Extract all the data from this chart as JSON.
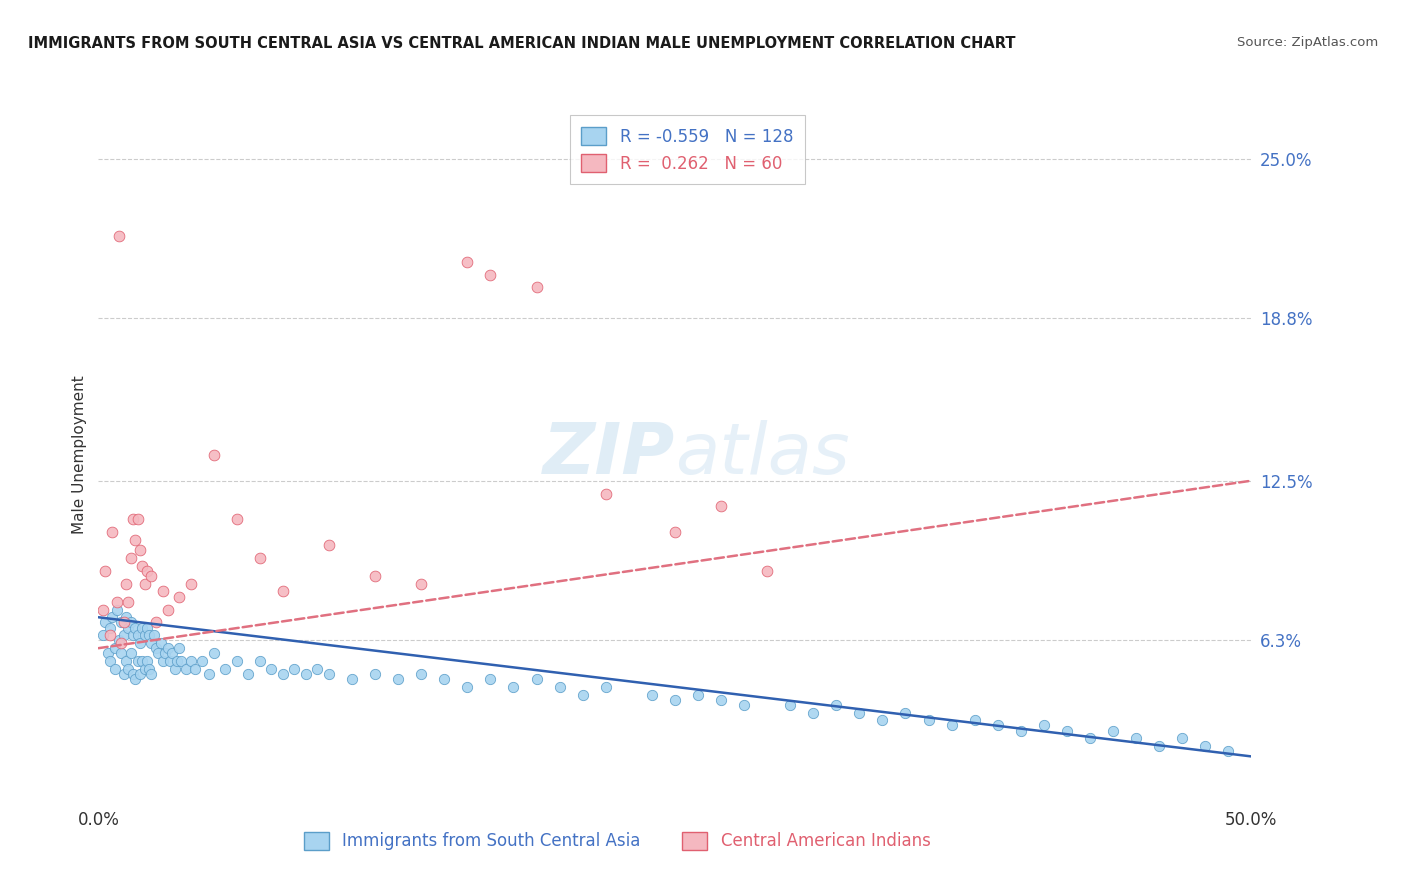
{
  "title": "IMMIGRANTS FROM SOUTH CENTRAL ASIA VS CENTRAL AMERICAN INDIAN MALE UNEMPLOYMENT CORRELATION CHART",
  "source": "Source: ZipAtlas.com",
  "ylabel": "Male Unemployment",
  "y_ticks": [
    6.3,
    12.5,
    18.8,
    25.0
  ],
  "x_range": [
    0.0,
    50.0
  ],
  "y_range": [
    0.0,
    27.0
  ],
  "blue_label": "Immigrants from South Central Asia",
  "pink_label": "Central American Indians",
  "blue_r": "-0.559",
  "blue_n": "128",
  "pink_r": "0.262",
  "pink_n": "60",
  "blue_color": "#A8D4F0",
  "pink_color": "#F5B8C0",
  "blue_edge": "#5B9EC9",
  "pink_edge": "#E06070",
  "trend_blue": "#3060B0",
  "trend_pink": "#E07080",
  "background": "#FFFFFF",
  "blue_scatter_x": [
    0.2,
    0.3,
    0.4,
    0.5,
    0.5,
    0.6,
    0.7,
    0.7,
    0.8,
    0.9,
    1.0,
    1.0,
    1.1,
    1.1,
    1.2,
    1.2,
    1.3,
    1.3,
    1.4,
    1.4,
    1.5,
    1.5,
    1.6,
    1.6,
    1.7,
    1.7,
    1.8,
    1.8,
    1.9,
    1.9,
    2.0,
    2.0,
    2.1,
    2.1,
    2.2,
    2.2,
    2.3,
    2.3,
    2.4,
    2.5,
    2.6,
    2.7,
    2.8,
    2.9,
    3.0,
    3.1,
    3.2,
    3.3,
    3.4,
    3.5,
    3.6,
    3.8,
    4.0,
    4.2,
    4.5,
    4.8,
    5.0,
    5.5,
    6.0,
    6.5,
    7.0,
    7.5,
    8.0,
    8.5,
    9.0,
    9.5,
    10.0,
    11.0,
    12.0,
    13.0,
    14.0,
    15.0,
    16.0,
    17.0,
    18.0,
    19.0,
    20.0,
    21.0,
    22.0,
    24.0,
    25.0,
    26.0,
    27.0,
    28.0,
    30.0,
    31.0,
    32.0,
    33.0,
    34.0,
    35.0,
    36.0,
    37.0,
    38.0,
    39.0,
    40.0,
    41.0,
    42.0,
    43.0,
    44.0,
    45.0,
    46.0,
    47.0,
    48.0,
    49.0
  ],
  "blue_scatter_y": [
    6.5,
    7.0,
    5.8,
    6.8,
    5.5,
    7.2,
    6.0,
    5.2,
    7.5,
    6.3,
    7.0,
    5.8,
    6.5,
    5.0,
    7.2,
    5.5,
    6.8,
    5.2,
    7.0,
    5.8,
    6.5,
    5.0,
    6.8,
    4.8,
    6.5,
    5.5,
    6.2,
    5.0,
    6.8,
    5.5,
    6.5,
    5.2,
    6.8,
    5.5,
    6.5,
    5.2,
    6.2,
    5.0,
    6.5,
    6.0,
    5.8,
    6.2,
    5.5,
    5.8,
    6.0,
    5.5,
    5.8,
    5.2,
    5.5,
    6.0,
    5.5,
    5.2,
    5.5,
    5.2,
    5.5,
    5.0,
    5.8,
    5.2,
    5.5,
    5.0,
    5.5,
    5.2,
    5.0,
    5.2,
    5.0,
    5.2,
    5.0,
    4.8,
    5.0,
    4.8,
    5.0,
    4.8,
    4.5,
    4.8,
    4.5,
    4.8,
    4.5,
    4.2,
    4.5,
    4.2,
    4.0,
    4.2,
    4.0,
    3.8,
    3.8,
    3.5,
    3.8,
    3.5,
    3.2,
    3.5,
    3.2,
    3.0,
    3.2,
    3.0,
    2.8,
    3.0,
    2.8,
    2.5,
    2.8,
    2.5,
    2.2,
    2.5,
    2.2,
    2.0
  ],
  "pink_scatter_x": [
    0.2,
    0.3,
    0.5,
    0.6,
    0.8,
    0.9,
    1.0,
    1.1,
    1.2,
    1.3,
    1.4,
    1.5,
    1.6,
    1.7,
    1.8,
    1.9,
    2.0,
    2.1,
    2.3,
    2.5,
    2.8,
    3.0,
    3.5,
    4.0,
    5.0,
    6.0,
    7.0,
    8.0,
    10.0,
    12.0,
    14.0,
    16.0,
    17.0,
    19.0,
    22.0,
    25.0,
    27.0,
    29.0
  ],
  "pink_scatter_y": [
    7.5,
    9.0,
    6.5,
    10.5,
    7.8,
    22.0,
    6.2,
    7.0,
    8.5,
    7.8,
    9.5,
    11.0,
    10.2,
    11.0,
    9.8,
    9.2,
    8.5,
    9.0,
    8.8,
    7.0,
    8.2,
    7.5,
    8.0,
    8.5,
    13.5,
    11.0,
    9.5,
    8.2,
    10.0,
    8.8,
    8.5,
    21.0,
    20.5,
    20.0,
    12.0,
    10.5,
    11.5,
    9.0
  ],
  "blue_trend_x0": 0.0,
  "blue_trend_y0": 7.2,
  "blue_trend_x1": 50.0,
  "blue_trend_y1": 1.8,
  "pink_trend_x0": 0.0,
  "pink_trend_y0": 6.0,
  "pink_trend_x1": 50.0,
  "pink_trend_y1": 12.5
}
